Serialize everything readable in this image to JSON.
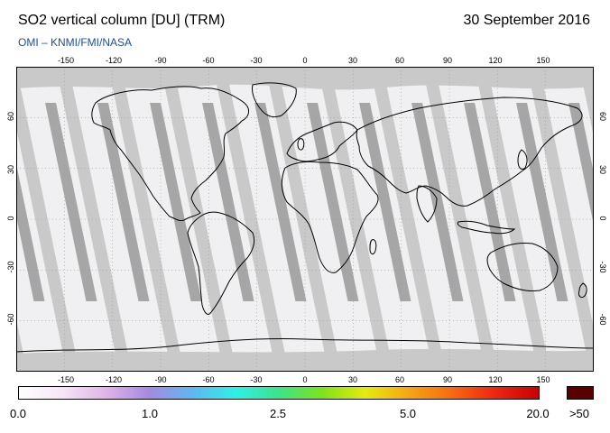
{
  "header": {
    "title": "SO2 vertical column [DU] (TRM)",
    "date": "30 September 2016",
    "credit": "OMI  –  KNMI/FMI/NASA"
  },
  "map": {
    "projection": "equirectangular",
    "lon_ticks": [
      "-150",
      "-120",
      "-90",
      "-60",
      "-30",
      "0",
      "30",
      "60",
      "90",
      "120",
      "150"
    ],
    "lat_ticks": [
      "60",
      "30",
      "0",
      "-30",
      "-60"
    ],
    "colors": {
      "no_data": "#c9c9c9",
      "swath_light": "#f0f0f2",
      "overlap_dark": "#a6a6a6",
      "coastline": "#000000",
      "grid": "#9a9a9a"
    }
  },
  "colorbar": {
    "labels": [
      "0.0",
      "1.0",
      "2.5",
      "5.0",
      "20.0"
    ],
    "overflow_label": ">50",
    "overflow_color": "#5a0000",
    "gradient": [
      "#ffffff",
      "#f6e6f6",
      "#e2b3ea",
      "#a58ae0",
      "#5fb7f2",
      "#2ff0e6",
      "#3ce38a",
      "#7ee21c",
      "#e6ea10",
      "#f6a512",
      "#f76a10",
      "#ef2512",
      "#c80000"
    ]
  }
}
